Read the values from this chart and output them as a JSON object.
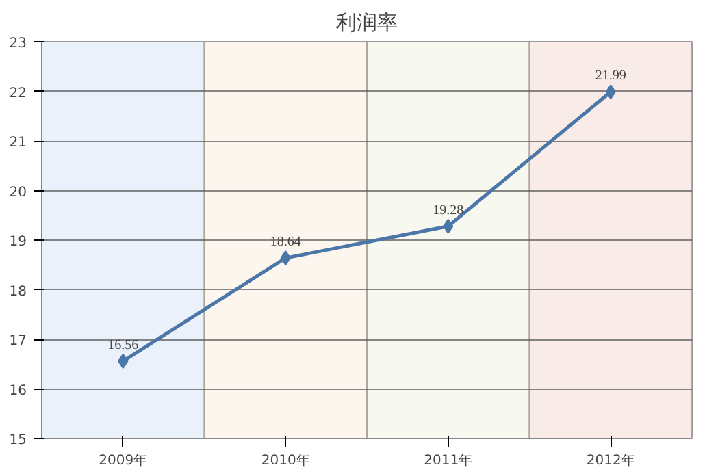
{
  "chart_data": {
    "type": "line",
    "title": "利润率",
    "categories": [
      "2009年",
      "2010年",
      "2011年",
      "2012年"
    ],
    "series": [
      {
        "color": "#4a76a8",
        "values": [
          16.56,
          18.64,
          19.28,
          21.99
        ]
      }
    ],
    "ylim": [
      15,
      23
    ],
    "yticks": [
      15,
      16,
      17,
      18,
      19,
      20,
      21,
      22,
      23
    ],
    "grid": "y",
    "marker": "diamond",
    "line_style": "solid",
    "data_labels": true,
    "bands": [
      {
        "axis": "x",
        "from": "2009年",
        "to": "2009年",
        "color": "#eaf1fb"
      },
      {
        "axis": "x",
        "from": "2010年",
        "to": "2010年",
        "color": "#fdf6ee"
      },
      {
        "axis": "x",
        "from": "2011年",
        "to": "2011年",
        "color": "#f7f8f0"
      },
      {
        "axis": "x",
        "from": "2012年",
        "to": "2012年",
        "color": "#f8ebe8"
      }
    ]
  }
}
